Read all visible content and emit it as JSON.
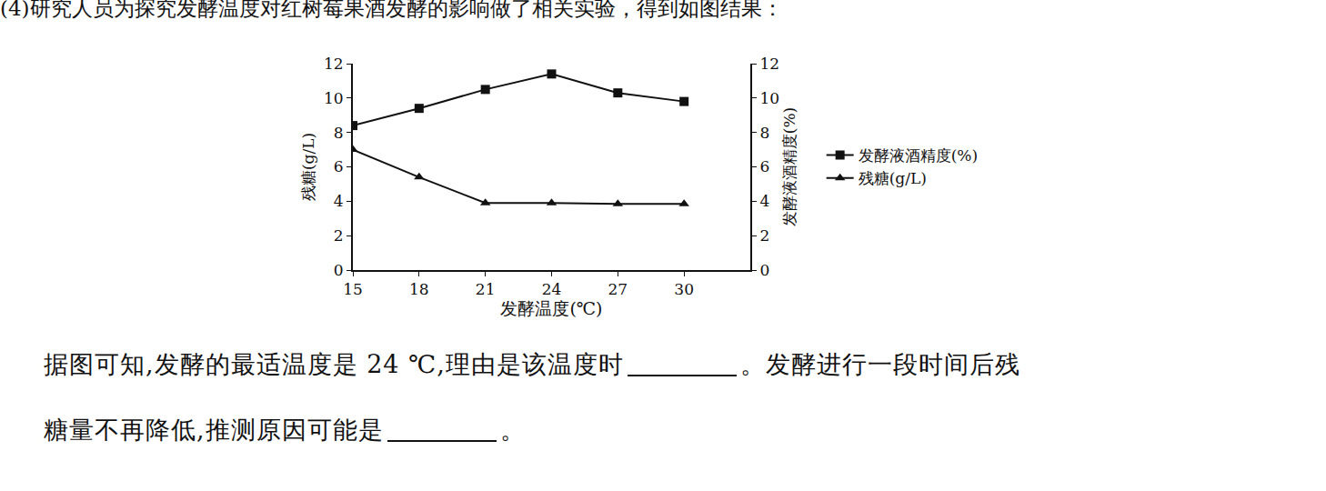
{
  "chart_data": {
    "type": "line",
    "x_label": "发酵温度(℃)",
    "y_label": "残糖(g/L)",
    "y2_label": "发酵液酒精度(%)",
    "x": [
      15,
      18,
      21,
      24,
      27,
      30
    ],
    "xlim": [
      15,
      33
    ],
    "xticks": [
      15,
      18,
      21,
      24,
      27,
      30
    ],
    "ylim": [
      0,
      12
    ],
    "yticks": [
      0,
      2,
      4,
      6,
      8,
      10,
      12
    ],
    "y2lim": [
      0,
      12
    ],
    "y2ticks": [
      0,
      2,
      4,
      6,
      8,
      10,
      12
    ],
    "grid": false,
    "legend": "right",
    "series": [
      {
        "name": "发酵液酒精度(%)",
        "color": "#111111",
        "marker": "square",
        "line_style": "solid",
        "axis": "y2",
        "values": [
          8.4,
          9.4,
          10.5,
          11.4,
          10.3,
          9.8
        ]
      },
      {
        "name": "残糖(g/L)",
        "color": "#111111",
        "marker": "triangle-up",
        "line_style": "solid",
        "axis": "y",
        "values": [
          7.0,
          5.4,
          3.9,
          3.9,
          3.85,
          3.85
        ]
      }
    ]
  },
  "text": {
    "intro": "(4)研究人员为探究发酵温度对红树莓果酒发酵的影响做了相关实验，得到如图结果：",
    "question_lines": [
      [
        "据图可知,发酵的最适温度是 24 ℃,理由是该温度时",
        "。发酵进行一段时间后残"
      ],
      [
        "糖量不再降低,推测原因可能是",
        "。"
      ]
    ]
  }
}
